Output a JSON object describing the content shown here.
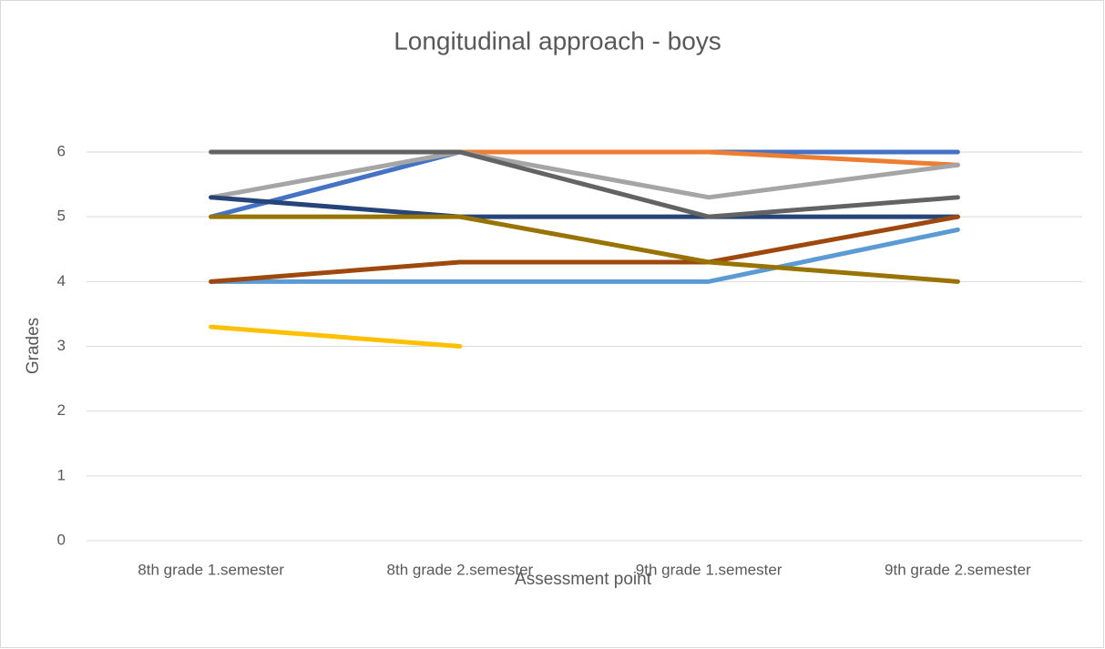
{
  "chart_data": {
    "type": "line",
    "title": "Longitudinal approach - boys",
    "x_label": "Assessment point",
    "y_label": "Grades",
    "categories": [
      "8th grade 1.semester",
      "8th grade 2.semester",
      "9th grade 1.semester",
      "9th grade 2.semester"
    ],
    "series": [
      {
        "color": "#4472c4",
        "values": [
          5,
          6,
          6,
          6
        ]
      },
      {
        "color": "#ed7d31",
        "values": [
          6,
          6,
          6,
          5.8
        ]
      },
      {
        "color": "#a5a5a5",
        "values": [
          5.3,
          6,
          5.3,
          5.8
        ]
      },
      {
        "color": "#ffc000",
        "values": [
          3.3,
          3,
          null,
          null
        ]
      },
      {
        "color": "#5b9bd5",
        "values": [
          4,
          4,
          4,
          4.8
        ]
      },
      {
        "color": "#264478",
        "values": [
          5.3,
          5,
          5,
          5
        ]
      },
      {
        "color": "#9e480e",
        "values": [
          4,
          4.3,
          4.3,
          5
        ]
      },
      {
        "color": "#636363",
        "values": [
          6,
          6,
          5,
          5.3
        ]
      },
      {
        "color": "#997300",
        "values": [
          5,
          5,
          4.3,
          4
        ]
      }
    ],
    "ylim": [
      0,
      6
    ],
    "yticks": [
      0,
      1,
      2,
      3,
      4,
      5,
      6
    ],
    "grid": true
  }
}
